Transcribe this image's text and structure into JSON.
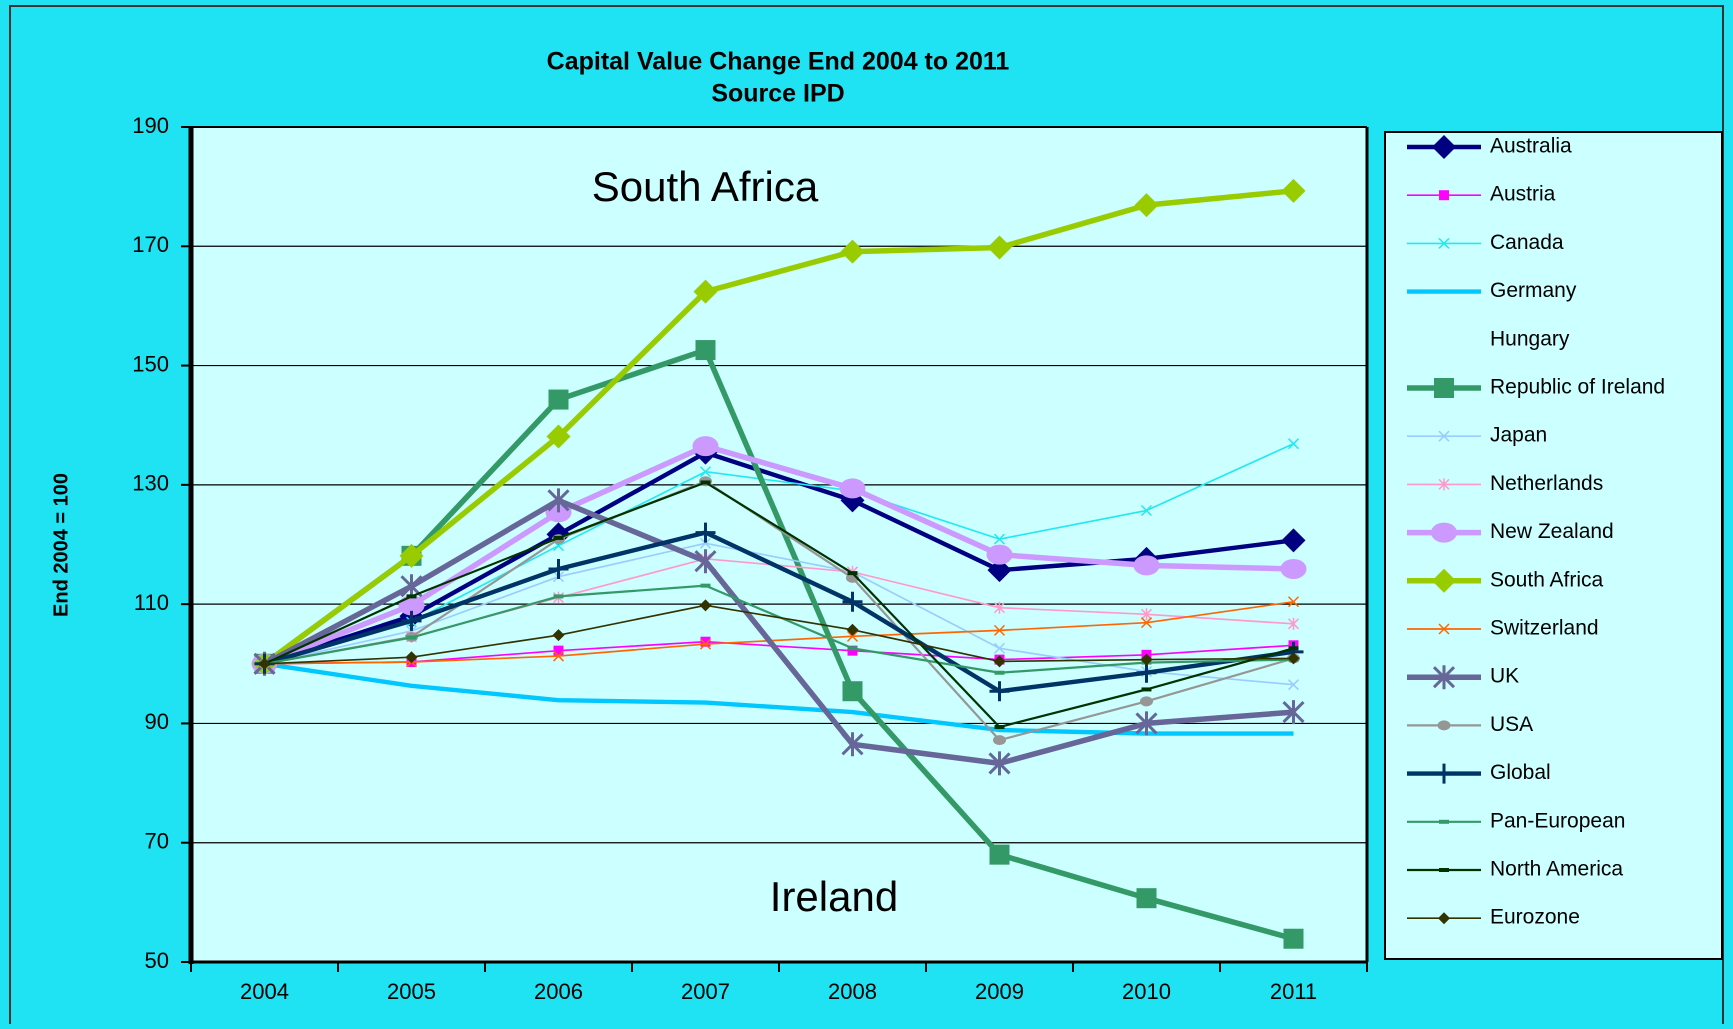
{
  "chart_data": {
    "type": "line",
    "title": "Capital Value Change End 2004 to 2011",
    "subtitle": "Source IPD",
    "y_axis_label": "End 2004 = 100",
    "annotations": [
      "South Africa",
      "Ireland"
    ],
    "categories": [
      "2004",
      "2005",
      "2006",
      "2007",
      "2008",
      "2009",
      "2010",
      "2011"
    ],
    "ylim": [
      50,
      190
    ],
    "yticks": [
      50,
      70,
      90,
      110,
      130,
      150,
      170,
      190
    ],
    "grid": true,
    "legend": "right",
    "series": [
      {
        "name": "Australia",
        "color": "#000080",
        "marker": "diamond",
        "width": 4,
        "values": [
          100,
          108,
          121.7,
          135.4,
          127.4,
          115.7,
          117.6,
          120.7
        ]
      },
      {
        "name": "Austria",
        "color": "#ff00ff",
        "marker": "square",
        "width": 1.5,
        "values": [
          100,
          100.3,
          102.2,
          103.7,
          102.2,
          100.7,
          101.5,
          103.1
        ]
      },
      {
        "name": "Canada",
        "color": "#22e8f0",
        "marker": "x",
        "width": 1.5,
        "values": [
          100,
          107,
          119.8,
          132.2,
          129,
          120.9,
          125.7,
          136.9
        ]
      },
      {
        "name": "Germany",
        "color": "#00c8ff",
        "marker": "none",
        "width": 4,
        "values": [
          100,
          96.3,
          93.9,
          93.5,
          91.9,
          88.9,
          88.3,
          88.3
        ]
      },
      {
        "name": "Hungary",
        "color": "#ffffff",
        "marker": "none",
        "width": 1.5,
        "values": [
          null,
          null,
          null,
          null,
          null,
          null,
          null,
          null
        ]
      },
      {
        "name": "Republic of Ireland",
        "color": "#339966",
        "marker": "square",
        "width": 5,
        "values": [
          100,
          118.1,
          144.3,
          152.6,
          95.4,
          68,
          60.7,
          53.9
        ]
      },
      {
        "name": "Japan",
        "color": "#99ccff",
        "marker": "x",
        "width": 1.5,
        "values": [
          100,
          105.5,
          114.6,
          120.2,
          115.4,
          102.6,
          98.7,
          96.5
        ]
      },
      {
        "name": "Netherlands",
        "color": "#ff99cc",
        "marker": "star",
        "width": 1.5,
        "values": [
          100,
          104.5,
          111.1,
          117.6,
          115.4,
          109.4,
          108.3,
          106.7
        ]
      },
      {
        "name": "New Zealand",
        "color": "#cc99ff",
        "marker": "circle",
        "width": 5,
        "values": [
          100,
          109.8,
          125.4,
          136.5,
          129.4,
          118.3,
          116.5,
          115.9
        ]
      },
      {
        "name": "South Africa",
        "color": "#99cc00",
        "marker": "diamond",
        "width": 5,
        "values": [
          100,
          118.1,
          138.1,
          162.4,
          169.1,
          169.8,
          176.9,
          179.3
        ]
      },
      {
        "name": "Switzerland",
        "color": "#ff6600",
        "marker": "x",
        "width": 1.5,
        "values": [
          100,
          100.3,
          101.3,
          103.3,
          104.6,
          105.6,
          106.9,
          110.4
        ]
      },
      {
        "name": "UK",
        "color": "#666699",
        "marker": "star",
        "width": 5,
        "values": [
          100,
          113,
          127.4,
          117.2,
          86.5,
          83.3,
          90,
          91.9
        ]
      },
      {
        "name": "USA",
        "color": "#969696",
        "marker": "circle",
        "width": 2,
        "values": [
          100,
          104.5,
          120.9,
          130.6,
          114.4,
          87.2,
          93.7,
          100.9
        ]
      },
      {
        "name": "Global",
        "color": "#003366",
        "marker": "plus",
        "width": 4,
        "values": [
          100,
          107.2,
          115.9,
          122,
          110.4,
          95.4,
          98.5,
          102
        ]
      },
      {
        "name": "Pan-European",
        "color": "#339966",
        "marker": "dash",
        "width": 2,
        "values": [
          100,
          104.4,
          111.3,
          113.1,
          102.6,
          98.5,
          100.2,
          100.7
        ]
      },
      {
        "name": "North America",
        "color": "#003300",
        "marker": "dash",
        "width": 2,
        "values": [
          100,
          111.3,
          121.1,
          130.4,
          115.2,
          89.4,
          95.7,
          102.6
        ]
      },
      {
        "name": "Eurozone",
        "color": "#333300",
        "marker": "diamond",
        "width": 1.5,
        "values": [
          100,
          101.1,
          104.8,
          109.8,
          105.7,
          100.4,
          100.7,
          100.9
        ]
      }
    ]
  }
}
